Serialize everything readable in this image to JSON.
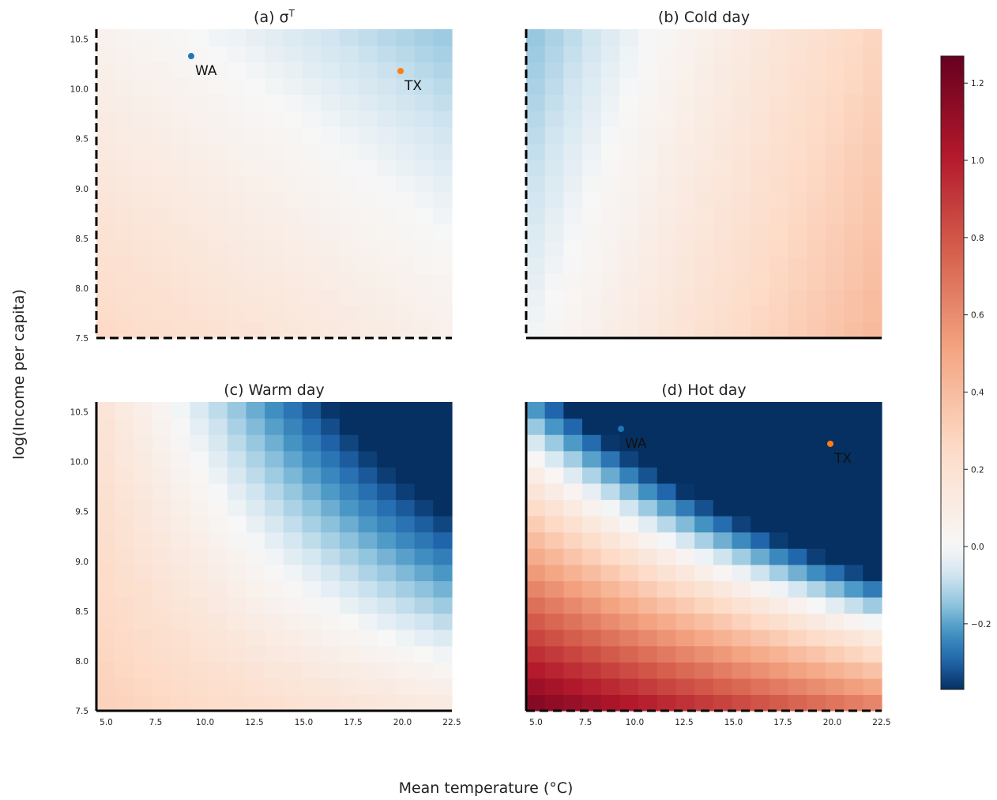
{
  "figure": {
    "xlabel": "Mean temperature (°C)",
    "ylabel": "log(Income per capita)"
  },
  "chart_data": [
    {
      "type": "heatmap",
      "title": "(a) σ",
      "title_superscript": "T",
      "x_range": [
        4.5,
        22.5
      ],
      "y_range": [
        7.5,
        10.6
      ],
      "x_ticks": [
        "5.0",
        "7.5",
        "10.0",
        "12.5",
        "15.0",
        "17.5",
        "20.0",
        "22.5"
      ],
      "y_ticks": [
        "7.5",
        "8.0",
        "8.5",
        "9.0",
        "9.5",
        "10.0",
        "10.5"
      ],
      "show_x_ticks": false,
      "left_spine": "dashed",
      "bottom_spine": "dashed",
      "grid": false,
      "surface": {
        "base": 0.255,
        "slope_x": -0.0108,
        "slope_y": -0.068,
        "cross": 0.0
      },
      "points": [
        {
          "label": "WA",
          "x": 9.3,
          "y": 10.33,
          "color": "#1f77b4"
        },
        {
          "label": "TX",
          "x": 19.9,
          "y": 10.18,
          "color": "#ff7f0e"
        }
      ]
    },
    {
      "type": "heatmap",
      "title": "(b) Cold day",
      "x_range": [
        4.5,
        22.5
      ],
      "y_range": [
        7.5,
        10.6
      ],
      "x_ticks": [
        "5.0",
        "7.5",
        "10.0",
        "12.5",
        "15.0",
        "17.5",
        "20.0",
        "22.5"
      ],
      "y_ticks": [
        "7.5",
        "8.0",
        "8.5",
        "9.0",
        "9.5",
        "10.0",
        "10.5"
      ],
      "show_x_ticks": false,
      "show_y_ticks": false,
      "left_spine": "dashed",
      "bottom_spine": "solid",
      "grid": false,
      "surface": {
        "base": -0.005,
        "slope_x": 0.0245,
        "slope_y": -0.045,
        "cross": 0.0
      },
      "points": []
    },
    {
      "type": "heatmap",
      "title": "(c) Warm day",
      "x_range": [
        4.5,
        22.5
      ],
      "y_range": [
        7.5,
        10.6
      ],
      "x_ticks": [
        "5.0",
        "7.5",
        "10.0",
        "12.5",
        "15.0",
        "17.5",
        "20.0",
        "22.5"
      ],
      "y_ticks": [
        "7.5",
        "8.0",
        "8.5",
        "9.0",
        "9.5",
        "10.0",
        "10.5"
      ],
      "show_x_ticks": true,
      "left_spine": "solid",
      "bottom_spine": "solid",
      "grid": false,
      "surface": {
        "base": 0.3,
        "slope_x": -0.01,
        "slope_y": -0.045,
        "cross": -0.012
      },
      "points": []
    },
    {
      "type": "heatmap",
      "title": "(d) Hot day",
      "x_range": [
        4.5,
        22.5
      ],
      "y_range": [
        7.5,
        10.6
      ],
      "x_ticks": [
        "5.0",
        "7.5",
        "10.0",
        "12.5",
        "15.0",
        "17.5",
        "20.0",
        "22.5"
      ],
      "y_ticks": [
        "7.5",
        "8.0",
        "8.5",
        "9.0",
        "9.5",
        "10.0",
        "10.5"
      ],
      "show_x_ticks": true,
      "show_y_ticks": false,
      "left_spine": "solid",
      "bottom_spine": "dashed",
      "grid": false,
      "surface": {
        "base": 1.2,
        "slope_x": -0.03,
        "slope_y": -0.47,
        "cross": -0.018
      },
      "points": [
        {
          "label": "WA",
          "x": 9.3,
          "y": 10.33,
          "color": "#1f77b4"
        },
        {
          "label": "TX",
          "x": 19.9,
          "y": 10.18,
          "color": "#ff7f0e"
        }
      ]
    }
  ],
  "colorbar": {
    "colormap": "RdBu_r",
    "min": -0.37,
    "max": 1.27,
    "ticks": [
      "−0.2",
      "0.0",
      "0.2",
      "0.4",
      "0.6",
      "0.8",
      "1.0",
      "1.2"
    ],
    "tick_values": [
      -0.2,
      0.0,
      0.2,
      0.4,
      0.6,
      0.8,
      1.0,
      1.2
    ]
  }
}
